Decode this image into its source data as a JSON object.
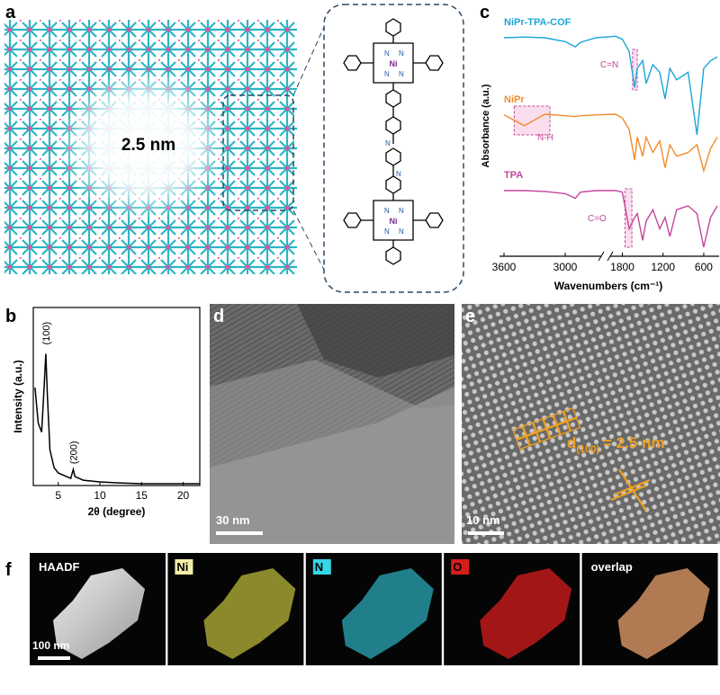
{
  "panels": {
    "a": {
      "letter": "a",
      "pore_label": "2.5 nm",
      "metal": "Ni",
      "nitrogen": "N"
    },
    "b": {
      "letter": "b"
    },
    "c": {
      "letter": "c"
    },
    "d": {
      "letter": "d",
      "scale_bar": "30 nm"
    },
    "e": {
      "letter": "e",
      "scale_bar": "10 nm",
      "d_symbol": "d",
      "d_index": "(100)",
      "d_value": "= 2.5 nm"
    },
    "f": {
      "letter": "f",
      "scale_bar": "100 nm",
      "maps": [
        "HAADF",
        "Ni",
        "N",
        "O",
        "overlap"
      ]
    }
  },
  "chart_data": [
    {
      "type": "line",
      "x_label": "2θ (degree)",
      "y_label": "Intensity (a.u.)",
      "x": [
        2.2,
        2.6,
        3,
        3.3,
        3.5,
        3.7,
        4,
        4.5,
        5,
        6,
        6.5,
        6.8,
        7,
        7.5,
        8,
        10,
        12,
        15,
        18,
        22
      ],
      "values": [
        55,
        35,
        30,
        55,
        74,
        50,
        20,
        10,
        7,
        5,
        4,
        9,
        5,
        4,
        3,
        2,
        1.5,
        1,
        1,
        1
      ],
      "color": "#000000",
      "xlim": [
        2,
        22
      ],
      "xticks": [
        5,
        10,
        15,
        20
      ],
      "ylim": [
        0,
        100
      ],
      "annotations": [
        "(100)",
        "(200)"
      ]
    },
    {
      "type": "line",
      "x_label": "Wavenumbers (cm⁻¹)",
      "y_label": "Absorbance (a.u.)",
      "x": [
        3600,
        3400,
        3200,
        3000,
        2900,
        2850,
        2700,
        1900,
        1800,
        1700,
        1620,
        1580,
        1500,
        1450,
        1350,
        1250,
        1170,
        1100,
        1000,
        830,
        700,
        600,
        500,
        400
      ],
      "series": [
        {
          "name": "NiPr-TPA-COF",
          "color": "#1ba6d8",
          "values": [
            280,
            281,
            280,
            275,
            268,
            274,
            280,
            282,
            278,
            262,
            215,
            240,
            250,
            220,
            245,
            235,
            200,
            240,
            225,
            235,
            153,
            240,
            250,
            255
          ]
        },
        {
          "name": "NiPr",
          "color": "#f28c28",
          "values": [
            179,
            165,
            180,
            178,
            177,
            178,
            179,
            180,
            175,
            160,
            120,
            150,
            125,
            150,
            130,
            145,
            110,
            140,
            125,
            130,
            140,
            106,
            135,
            150
          ]
        },
        {
          "name": "TPA",
          "color": "#c2469b",
          "values": [
            80,
            80,
            79,
            76,
            70,
            78,
            80,
            80,
            78,
            30,
            45,
            50,
            15,
            40,
            55,
            30,
            45,
            20,
            55,
            60,
            50,
            6,
            45,
            60
          ]
        }
      ],
      "xlim": [
        3600,
        400
      ],
      "xbreak": [
        2700,
        1900
      ],
      "xticks": [
        3600,
        3000,
        1800,
        1200,
        600
      ],
      "ylim": [
        0,
        300
      ],
      "annotations": [
        "C=N",
        "N-H",
        "C=O"
      ]
    }
  ]
}
